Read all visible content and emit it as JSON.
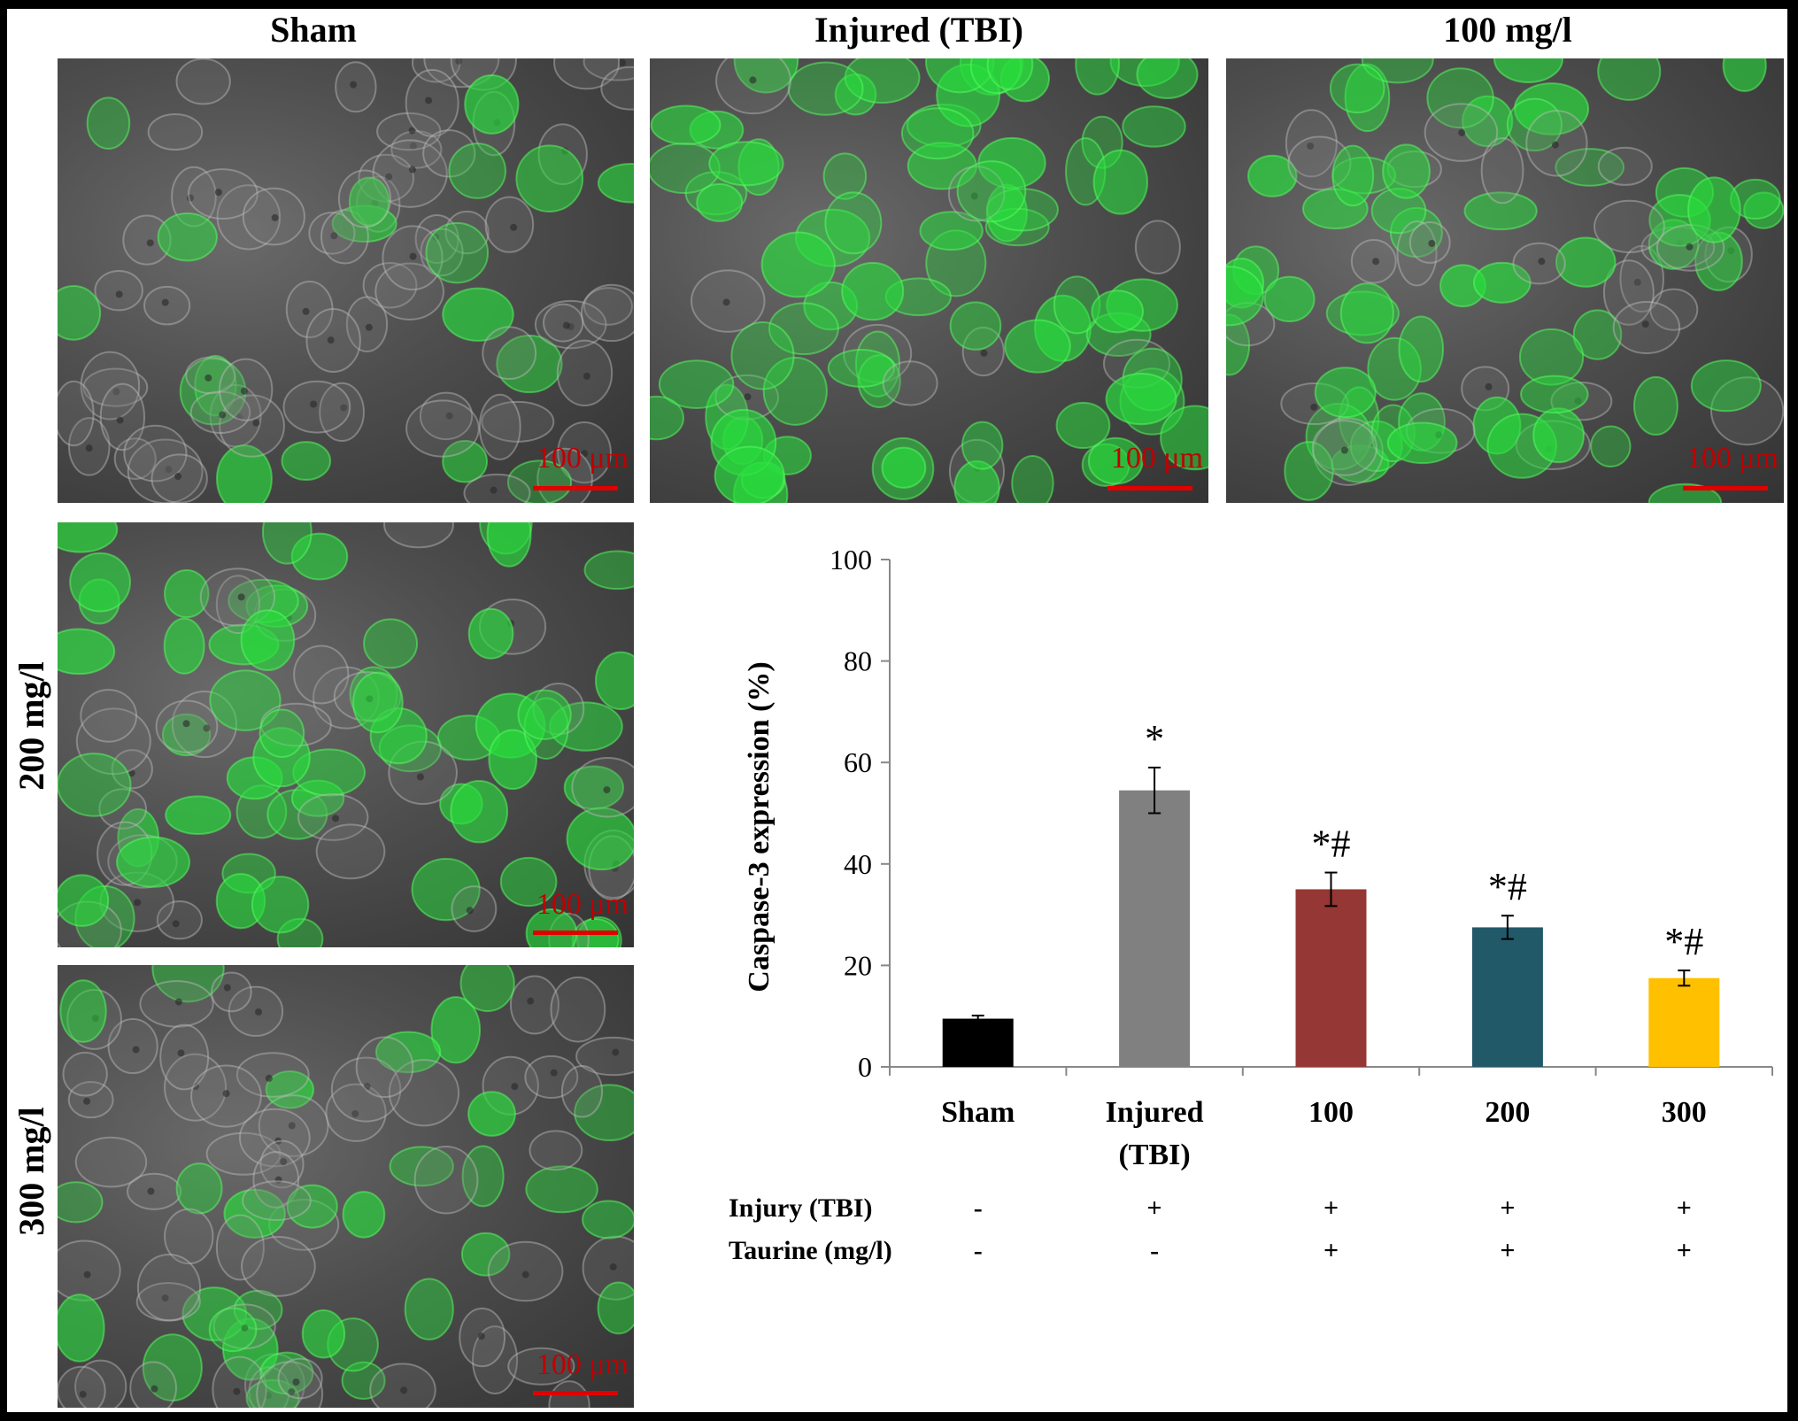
{
  "panels": {
    "sham": {
      "title": "Sham",
      "scale_label": "100 μm"
    },
    "injured": {
      "title": "Injured (TBI)",
      "scale_label": "100 μm"
    },
    "dose100": {
      "title": "100 mg/l",
      "scale_label": "100 μm"
    },
    "dose200": {
      "title": "200 mg/l",
      "scale_label": "100 μm"
    },
    "dose300": {
      "title": "300 mg/l",
      "scale_label": "100 μm"
    }
  },
  "green_levels": {
    "sham": 0.2,
    "injured": 0.9,
    "dose100": 0.65,
    "dose200": 0.55,
    "dose300": 0.4
  },
  "chart_data": {
    "type": "bar",
    "title": "",
    "xlabel": "",
    "ylabel": "Caspase-3 expression (%)",
    "ylim": [
      0,
      100
    ],
    "yticks": [
      0,
      20,
      40,
      60,
      80,
      100
    ],
    "categories": [
      "Sham",
      "Injured (TBI)",
      "100",
      "200",
      "300"
    ],
    "category_lines": [
      [
        "Sham"
      ],
      [
        "Injured",
        "(TBI)"
      ],
      [
        "100"
      ],
      [
        "200"
      ],
      [
        "300"
      ]
    ],
    "values": [
      9.5,
      54.5,
      35,
      27.5,
      17.5
    ],
    "errors": [
      0.6,
      4.5,
      3.3,
      2.3,
      1.5
    ],
    "annotations": [
      "",
      "*",
      "*#",
      "*#",
      "*#"
    ],
    "colors": [
      "#000000",
      "#808080",
      "#953735",
      "#215968",
      "#ffc000"
    ],
    "grid": false,
    "legend": "none"
  },
  "treatment_table": {
    "rows": [
      {
        "label": "Injury (TBI)",
        "values": [
          "-",
          "+",
          "+",
          "+",
          "+"
        ]
      },
      {
        "label": "Taurine (mg/l)",
        "values": [
          "-",
          "-",
          "+",
          "+",
          "+"
        ]
      }
    ]
  }
}
